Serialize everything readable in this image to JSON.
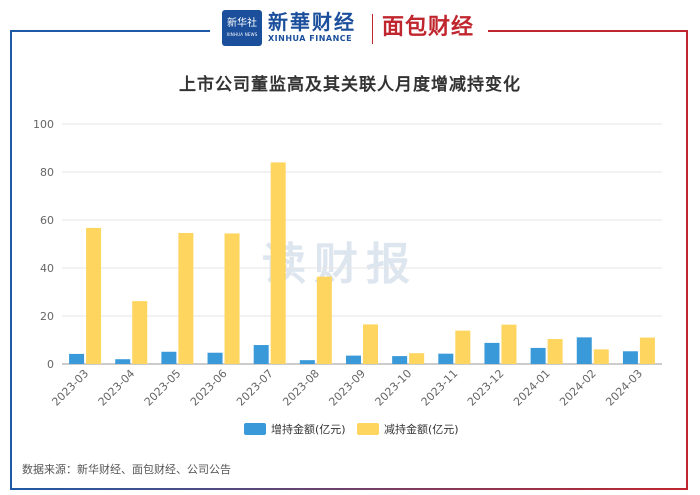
{
  "header": {
    "badge_cn": "新华社",
    "badge_en": "XINHUA NEWS",
    "brand_cn": "新華财经",
    "brand_en": "XINHUA FINANCE",
    "brand2": "面包财经"
  },
  "watermark": "读财报",
  "source": "数据来源：新华财经、面包财经、公司公告",
  "colors": {
    "increase": "#3a9ad9",
    "decrease": "#fdd55f",
    "grid": "#e6e6e6",
    "axis_text": "#666666"
  },
  "chart_data": {
    "type": "bar",
    "title": "上市公司董监高及其关联人月度增减持变化",
    "categories": [
      "2023-03",
      "2023-04",
      "2023-05",
      "2023-06",
      "2023-07",
      "2023-08",
      "2023-09",
      "2023-10",
      "2023-11",
      "2023-12",
      "2024-01",
      "2024-02",
      "2024-03"
    ],
    "series": [
      {
        "name": "增持金额(亿元)",
        "values": [
          4.2,
          2.0,
          5.1,
          4.7,
          7.9,
          1.6,
          3.5,
          3.3,
          4.3,
          8.8,
          6.7,
          11.1,
          5.3
        ]
      },
      {
        "name": "减持金额(亿元)",
        "values": [
          56.7,
          26.2,
          54.6,
          54.4,
          84.0,
          36.4,
          16.5,
          4.5,
          13.9,
          16.4,
          10.4,
          6.1,
          11.0
        ]
      }
    ],
    "ylim": [
      0,
      100
    ],
    "yticks": [
      0,
      20,
      40,
      60,
      80,
      100
    ],
    "grid": true,
    "legend": "bottom"
  }
}
